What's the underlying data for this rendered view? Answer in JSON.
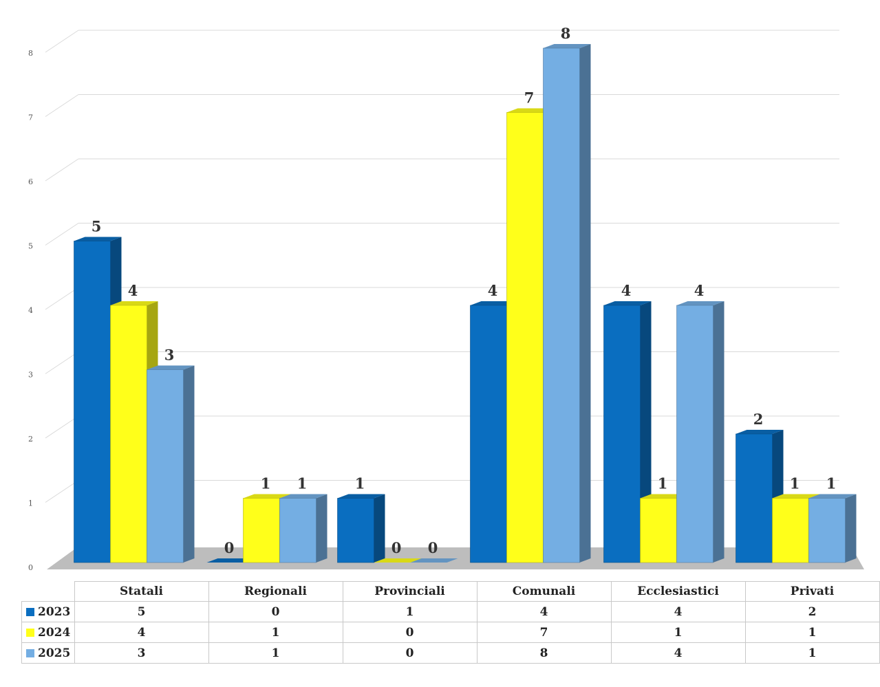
{
  "chart_data": {
    "type": "bar",
    "title": "",
    "xlabel": "",
    "ylabel": "",
    "ylim": [
      0,
      8
    ],
    "yticks": [
      "0",
      "1",
      "2",
      "3",
      "4",
      "5",
      "6",
      "7",
      "8"
    ],
    "grid": true,
    "legend": "table-below",
    "categories": [
      "Statali",
      "Regionali",
      "Provinciali",
      "Comunali",
      "Ecclesiastici",
      "Privati"
    ],
    "series": [
      {
        "name": "2023",
        "color": "#0a6ec0",
        "values": [
          5,
          0,
          1,
          4,
          4,
          2
        ]
      },
      {
        "name": "2024",
        "color": "#ffff1a",
        "values": [
          4,
          1,
          0,
          7,
          1,
          1
        ]
      },
      {
        "name": "2025",
        "color": "#74aee3",
        "values": [
          3,
          1,
          0,
          8,
          4,
          1
        ]
      }
    ]
  }
}
